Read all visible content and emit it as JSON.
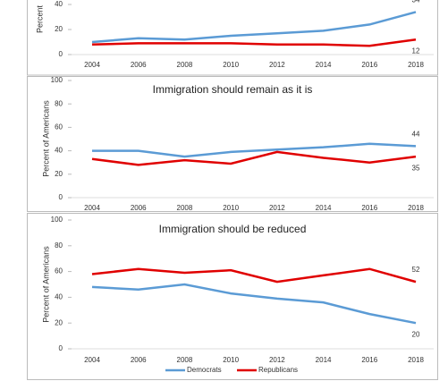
{
  "chart_data": [
    {
      "type": "line",
      "y_label": "Percent",
      "categories": [
        "2004",
        "2006",
        "2008",
        "2010",
        "2012",
        "2014",
        "2016",
        "2018"
      ],
      "series": [
        {
          "color": "#5b9bd5",
          "values": [
            10,
            13,
            12,
            15,
            17,
            19,
            24,
            34
          ]
        },
        {
          "color": "#e00000",
          "values": [
            8,
            9,
            9,
            9,
            8,
            8,
            7,
            12
          ]
        }
      ],
      "ylim": [
        0,
        40
      ],
      "yticks": [
        0,
        20,
        40
      ]
    },
    {
      "type": "line",
      "title": "Immigration should remain as it is",
      "y_label": "Percent of Americans",
      "categories": [
        "2004",
        "2006",
        "2008",
        "2010",
        "2012",
        "2014",
        "2016",
        "2018"
      ],
      "series": [
        {
          "color": "#5b9bd5",
          "values": [
            40,
            40,
            35,
            39,
            41,
            43,
            46,
            44
          ]
        },
        {
          "color": "#e00000",
          "values": [
            33,
            28,
            32,
            29,
            39,
            34,
            30,
            35
          ]
        }
      ],
      "ylim": [
        0,
        100
      ],
      "yticks": [
        0,
        20,
        40,
        60,
        80,
        100
      ]
    },
    {
      "type": "line",
      "title": "Immigration should be reduced",
      "y_label": "Percent of Americans",
      "categories": [
        "2004",
        "2006",
        "2008",
        "2010",
        "2012",
        "2014",
        "2016",
        "2018"
      ],
      "series": [
        {
          "name": "Democrats",
          "color": "#5b9bd5",
          "values": [
            48,
            46,
            50,
            43,
            39,
            36,
            27,
            20
          ]
        },
        {
          "name": "Republicans",
          "color": "#e00000",
          "values": [
            58,
            62,
            59,
            61,
            52,
            57,
            62,
            52
          ]
        }
      ],
      "ylim": [
        0,
        100
      ],
      "yticks": [
        0,
        20,
        40,
        60,
        80,
        100
      ]
    }
  ]
}
